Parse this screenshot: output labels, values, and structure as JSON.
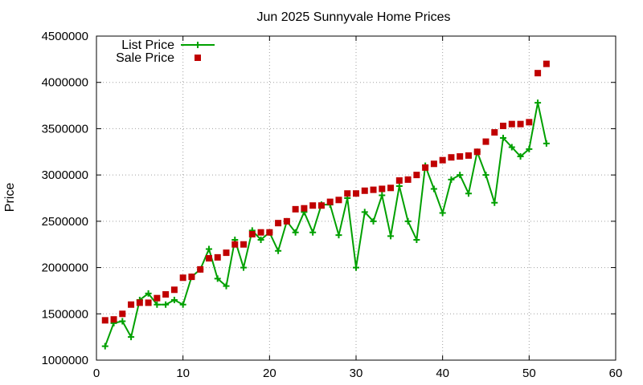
{
  "chart_data": {
    "type": "line",
    "title": "Jun 2025 Sunnyvale Home Prices",
    "xlabel": "",
    "ylabel": "Price",
    "xlim": [
      0,
      60
    ],
    "ylim": [
      1000000,
      4500000
    ],
    "xticks": [
      0,
      10,
      20,
      30,
      40,
      50,
      60
    ],
    "yticks": [
      1000000,
      1500000,
      2000000,
      2500000,
      3000000,
      3500000,
      4000000,
      4500000
    ],
    "grid": true,
    "legend_position": "top-left",
    "series": [
      {
        "name": "List Price",
        "style": "line+plus",
        "color": "#00a000",
        "x": [
          1,
          2,
          3,
          4,
          5,
          6,
          7,
          8,
          9,
          10,
          11,
          12,
          13,
          14,
          15,
          16,
          17,
          18,
          19,
          20,
          21,
          22,
          23,
          24,
          25,
          26,
          27,
          28,
          29,
          30,
          31,
          32,
          33,
          34,
          35,
          36,
          37,
          38,
          39,
          40,
          41,
          42,
          43,
          44,
          45,
          46,
          47,
          48,
          49,
          50,
          51,
          52
        ],
        "y": [
          1150000,
          1400000,
          1420000,
          1250000,
          1650000,
          1720000,
          1600000,
          1600000,
          1650000,
          1600000,
          1900000,
          1980000,
          2200000,
          1880000,
          1800000,
          2300000,
          2000000,
          2400000,
          2300000,
          2380000,
          2180000,
          2500000,
          2380000,
          2600000,
          2380000,
          2680000,
          2680000,
          2350000,
          2750000,
          2000000,
          2600000,
          2500000,
          2780000,
          2340000,
          2880000,
          2500000,
          2300000,
          3100000,
          2850000,
          2590000,
          2950000,
          3000000,
          2800000,
          3250000,
          3000000,
          2700000,
          3400000,
          3300000,
          3200000,
          3280000,
          3780000,
          3340000
        ]
      },
      {
        "name": "Sale Price",
        "style": "square-points",
        "color": "#c00000",
        "x": [
          1,
          2,
          3,
          4,
          5,
          6,
          7,
          8,
          9,
          10,
          11,
          12,
          13,
          14,
          15,
          16,
          17,
          18,
          19,
          20,
          21,
          22,
          23,
          24,
          25,
          26,
          27,
          28,
          29,
          30,
          31,
          32,
          33,
          34,
          35,
          36,
          37,
          38,
          39,
          40,
          41,
          42,
          43,
          44,
          45,
          46,
          47,
          48,
          49,
          50,
          51,
          52
        ],
        "y": [
          1430000,
          1440000,
          1500000,
          1600000,
          1620000,
          1620000,
          1670000,
          1710000,
          1760000,
          1890000,
          1900000,
          1980000,
          2100000,
          2110000,
          2160000,
          2250000,
          2250000,
          2360000,
          2380000,
          2380000,
          2480000,
          2500000,
          2630000,
          2640000,
          2670000,
          2670000,
          2710000,
          2730000,
          2800000,
          2800000,
          2830000,
          2840000,
          2850000,
          2860000,
          2940000,
          2950000,
          3000000,
          3080000,
          3120000,
          3160000,
          3190000,
          3200000,
          3210000,
          3250000,
          3360000,
          3460000,
          3530000,
          3550000,
          3550000,
          3570000,
          4100000,
          4200000
        ]
      }
    ]
  }
}
